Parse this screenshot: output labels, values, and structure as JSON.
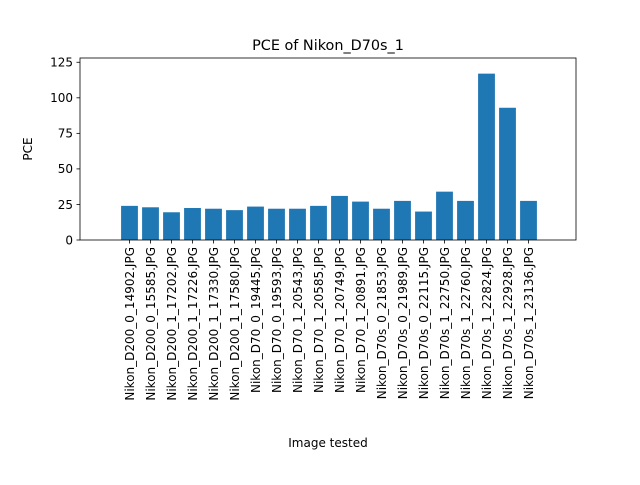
{
  "chart_data": {
    "type": "bar",
    "title": "PCE of Nikon_D70s_1",
    "xlabel": "Image tested",
    "ylabel": "PCE",
    "ylim": [
      0,
      128
    ],
    "yticks": [
      0,
      25,
      50,
      75,
      100,
      125
    ],
    "grid": false,
    "bar_color": "#1f77b4",
    "categories": [
      "Nikon_D200_0_14902.JPG",
      "Nikon_D200_0_15585.JPG",
      "Nikon_D200_1_17202.JPG",
      "Nikon_D200_1_17226.JPG",
      "Nikon_D200_1_17330.JPG",
      "Nikon_D200_1_17580.JPG",
      "Nikon_D70_0_19445.JPG",
      "Nikon_D70_0_19593.JPG",
      "Nikon_D70_1_20543.JPG",
      "Nikon_D70_1_20585.JPG",
      "Nikon_D70_1_20749.JPG",
      "Nikon_D70_1_20891.JPG",
      "Nikon_D70s_0_21853.JPG",
      "Nikon_D70s_0_21989.JPG",
      "Nikon_D70s_0_22115.JPG",
      "Nikon_D70s_1_22750.JPG",
      "Nikon_D70s_1_22760.JPG",
      "Nikon_D70s_1_22824.JPG",
      "Nikon_D70s_1_22928.JPG",
      "Nikon_D70s_1_23136.JPG"
    ],
    "values": [
      24,
      23,
      19.5,
      22.5,
      22,
      21,
      23.5,
      22,
      22,
      24,
      31,
      27,
      22,
      27.5,
      20,
      34,
      27.5,
      117,
      93,
      27.5
    ]
  }
}
